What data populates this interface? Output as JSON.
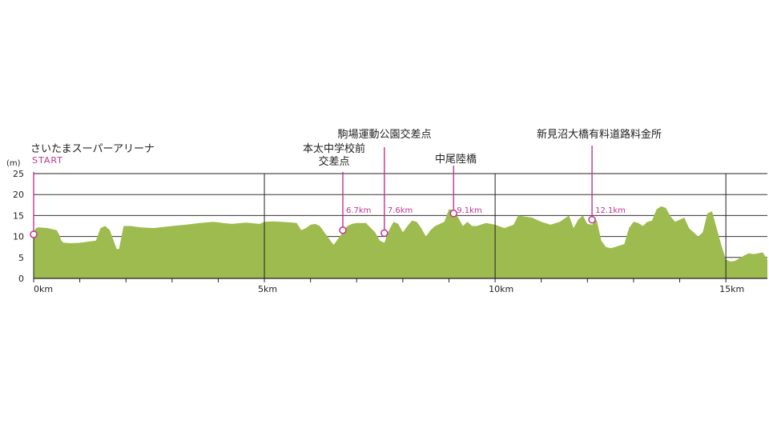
{
  "chart_data": {
    "type": "area",
    "ylabel": "(m)",
    "xlim": [
      0,
      15.9
    ],
    "ylim": [
      0,
      25
    ],
    "y_ticks": [
      0,
      5,
      10,
      15,
      20,
      25
    ],
    "x_tick_labels": [
      {
        "x": 0,
        "label": "0km"
      },
      {
        "x": 5,
        "label": "5km"
      },
      {
        "x": 10,
        "label": "10km"
      },
      {
        "x": 15,
        "label": "15km"
      }
    ],
    "grid": true,
    "fill_color": "#9dbb4e",
    "accent_color": "#c0358d",
    "series": [
      {
        "x": [
          0,
          0.05,
          0.1,
          0.3,
          0.5,
          0.55,
          0.6,
          0.65,
          0.7,
          0.8,
          1.0,
          1.2,
          1.35,
          1.45,
          1.55,
          1.65,
          1.75,
          1.8,
          1.85,
          1.95,
          2.1,
          2.3,
          2.6,
          3.0,
          3.3,
          3.6,
          3.9,
          4.1,
          4.3,
          4.6,
          4.9,
          5.0,
          5.2,
          5.5,
          5.7,
          5.8,
          5.9,
          6.0,
          6.1,
          6.2,
          6.3,
          6.4,
          6.5,
          6.6,
          6.7,
          6.8,
          6.9,
          7.0,
          7.2,
          7.4,
          7.5,
          7.6,
          7.7,
          7.8,
          7.9,
          8.0,
          8.1,
          8.2,
          8.3,
          8.4,
          8.5,
          8.6,
          8.7,
          8.8,
          8.9,
          9.0,
          9.1,
          9.2,
          9.3,
          9.4,
          9.5,
          9.6,
          9.8,
          10.0,
          10.2,
          10.4,
          10.5,
          10.6,
          10.8,
          11.0,
          11.2,
          11.4,
          11.6,
          11.7,
          11.8,
          11.9,
          12.0,
          12.1,
          12.2,
          12.3,
          12.4,
          12.5,
          12.6,
          12.8,
          12.9,
          13.0,
          13.1,
          13.2,
          13.3,
          13.4,
          13.5,
          13.6,
          13.7,
          13.8,
          13.9,
          14.0,
          14.1,
          14.2,
          14.3,
          14.4,
          14.5,
          14.6,
          14.7,
          14.8,
          14.9,
          15.0,
          15.1,
          15.2,
          15.3,
          15.4,
          15.5,
          15.6,
          15.7,
          15.8,
          15.9
        ],
        "y": [
          11,
          12,
          12.2,
          12.0,
          11.5,
          10.5,
          9.0,
          8.5,
          8.5,
          8.4,
          8.5,
          8.8,
          9.0,
          12.0,
          12.5,
          11.5,
          8.5,
          7.0,
          7.0,
          12.5,
          12.5,
          12.2,
          12.0,
          12.5,
          12.8,
          13.2,
          13.5,
          13.2,
          13.0,
          13.3,
          13.0,
          13.5,
          13.6,
          13.4,
          13.2,
          11.5,
          12.0,
          12.8,
          13.0,
          12.5,
          11.0,
          9.5,
          8.0,
          9.5,
          11.0,
          12.5,
          13.0,
          13.2,
          13.2,
          11.0,
          9.0,
          8.5,
          11.5,
          13.5,
          13.0,
          11.0,
          12.5,
          13.8,
          13.5,
          12.0,
          10.0,
          11.5,
          12.5,
          13.0,
          13.5,
          16.5,
          16.3,
          14.5,
          12.5,
          13.5,
          12.5,
          12.5,
          13.2,
          12.8,
          12.0,
          12.8,
          15.0,
          14.8,
          14.5,
          13.5,
          12.8,
          13.5,
          15.0,
          12.0,
          14.0,
          15.0,
          13.0,
          12.8,
          14.0,
          9.0,
          7.5,
          7.2,
          7.5,
          8.2,
          12.0,
          13.5,
          13.2,
          12.5,
          13.5,
          13.8,
          16.5,
          17.2,
          16.8,
          14.8,
          13.5,
          14.0,
          14.5,
          12.0,
          11.0,
          10.0,
          11.0,
          15.5,
          16.0,
          12.0,
          8.0,
          4.5,
          4.0,
          4.2,
          4.8,
          5.5,
          6.0,
          5.8,
          6.0,
          6.2,
          4.5
        ]
      }
    ],
    "annotations": [
      {
        "x": 0,
        "y": 10.5,
        "name_lines": [
          "さいたまスーパーアリーナ"
        ],
        "sub": "START",
        "distance": ""
      },
      {
        "x": 6.7,
        "y": 11.5,
        "name_lines": [
          "本太中学校前",
          "交差点"
        ],
        "sub": "",
        "distance": "6.7km"
      },
      {
        "x": 7.6,
        "y": 10.8,
        "name_lines": [
          "駒場運動公園交差点"
        ],
        "sub": "",
        "distance": "7.6km"
      },
      {
        "x": 9.1,
        "y": 15.5,
        "name_lines": [
          "中尾陸橋"
        ],
        "sub": "",
        "distance": "9.1km"
      },
      {
        "x": 12.1,
        "y": 14.0,
        "name_lines": [
          "新見沼大橋有料道路料金所"
        ],
        "sub": "",
        "distance": "12.1km"
      }
    ]
  }
}
